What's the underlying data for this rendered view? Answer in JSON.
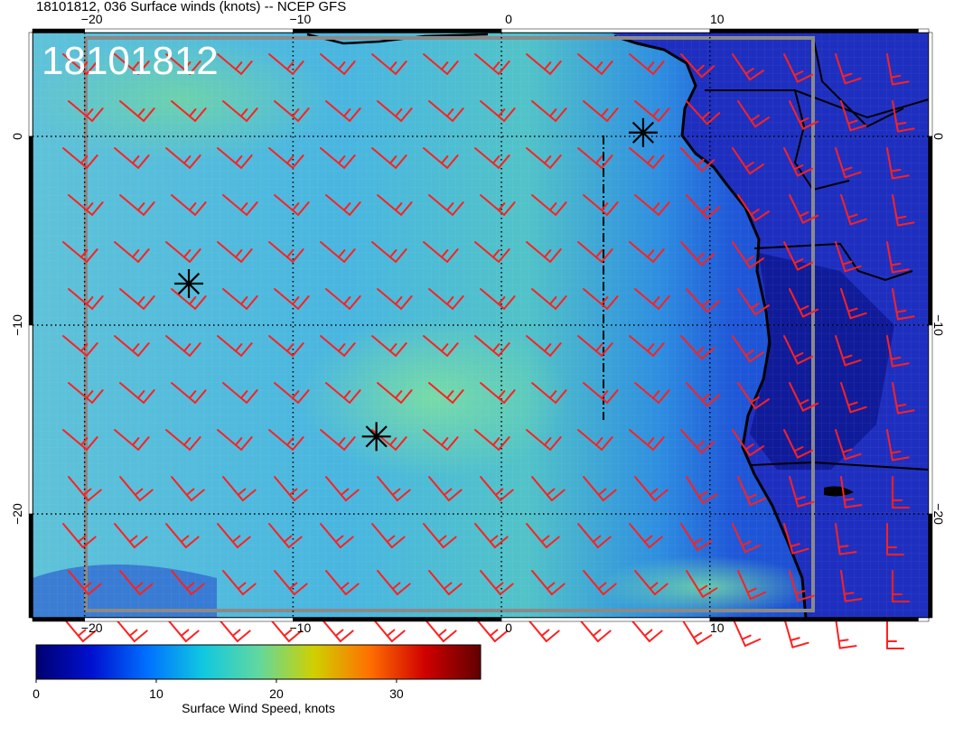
{
  "header": {
    "title": "18101812, 036 Surface winds (knots) -- NCEP GFS"
  },
  "map": {
    "stamp": "18101812",
    "lon_range": [
      -22.5,
      20.5
    ],
    "lat_range": [
      -25.5,
      5.5
    ],
    "lon_ticks": [
      {
        "value": -20,
        "label": "−20"
      },
      {
        "value": -10,
        "label": "−10"
      },
      {
        "value": 0,
        "label": "0"
      },
      {
        "value": 10,
        "label": "10"
      }
    ],
    "lat_ticks": [
      {
        "value": 0,
        "label": "0"
      },
      {
        "value": -10,
        "label": "−10"
      },
      {
        "value": -20,
        "label": "−20"
      }
    ],
    "storm_markers": [
      {
        "lon": -15.0,
        "lat": -7.8
      },
      {
        "lon": -6.0,
        "lat": -15.9
      },
      {
        "lon": 6.8,
        "lat": 0.2
      }
    ],
    "colors": {
      "ocean_fill": "#3aa8dc",
      "land_fill": "#1e2fc0",
      "barb": "#ff2020",
      "coast": "#000000"
    }
  },
  "colorbar": {
    "min": 0,
    "max": 37,
    "ticks": [
      {
        "value": 0,
        "label": "0"
      },
      {
        "value": 10,
        "label": "10"
      },
      {
        "value": 20,
        "label": "20"
      },
      {
        "value": 30,
        "label": "30"
      }
    ],
    "label": "Surface Wind Speed, knots",
    "stops": [
      "#000070",
      "#0010d0",
      "#0070ff",
      "#10c8e0",
      "#60d8a0",
      "#d0d000",
      "#ff7000",
      "#d00000",
      "#600000"
    ]
  }
}
